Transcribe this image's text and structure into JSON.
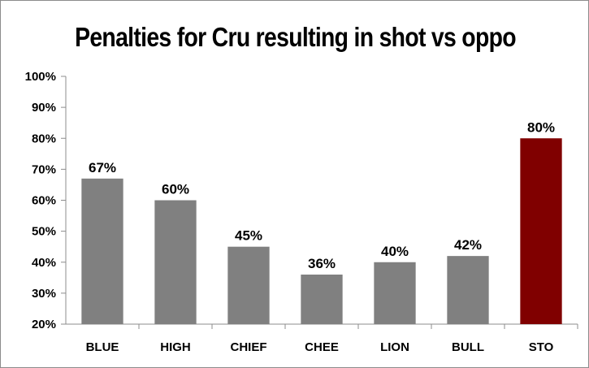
{
  "chart_data": {
    "type": "bar",
    "title": "Penalties for Cru resulting in shot vs oppo",
    "categories": [
      "BLUE",
      "HIGH",
      "CHIEF",
      "CHEE",
      "LION",
      "BULL",
      "STO"
    ],
    "values": [
      67,
      60,
      45,
      36,
      40,
      42,
      80
    ],
    "data_labels": [
      "67%",
      "60%",
      "45%",
      "36%",
      "40%",
      "42%",
      "80%"
    ],
    "bar_colors": [
      "#808080",
      "#808080",
      "#808080",
      "#808080",
      "#808080",
      "#808080",
      "#800000"
    ],
    "ylim": [
      20,
      100
    ],
    "yticks": [
      20,
      30,
      40,
      50,
      60,
      70,
      80,
      90,
      100
    ],
    "ytick_labels": [
      "20%",
      "30%",
      "40%",
      "50%",
      "60%",
      "70%",
      "80%",
      "90%",
      "100%"
    ],
    "xlabel": "",
    "ylabel": "",
    "grid": false,
    "legend": "none"
  }
}
